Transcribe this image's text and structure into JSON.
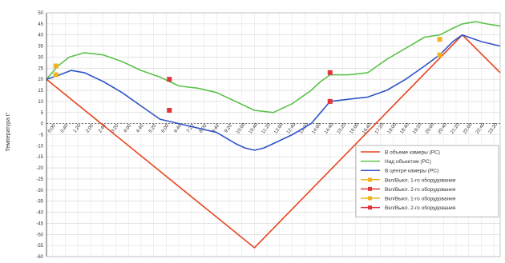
{
  "chart_data": {
    "type": "line",
    "title": "",
    "xlabel": "",
    "ylabel": "Температура t°",
    "ylim": [
      -60,
      50
    ],
    "yticks": [
      50,
      45,
      40,
      35,
      30,
      25,
      20,
      15,
      10,
      5,
      0,
      -5,
      -10,
      -15,
      -20,
      -25,
      -30,
      -35,
      -40,
      -45,
      -50,
      -55,
      -60
    ],
    "xlim": [
      0,
      24
    ],
    "x_tick_labels": [
      "0:00",
      "0:40",
      "1:20",
      "2:00",
      "2:40",
      "3:20",
      "4:00",
      "4:40",
      "5:20",
      "6:00",
      "6:40",
      "7:20",
      "8:00",
      "8:40",
      "9:20",
      "10:00",
      "10:40",
      "11:20",
      "12:00",
      "12:40",
      "13:20",
      "14:00",
      "14:40",
      "15:20",
      "16:00",
      "16:40",
      "17:20",
      "18:00",
      "18:40",
      "19:20",
      "20:00",
      "20:40",
      "21:20",
      "22:00",
      "22:40",
      "23:20"
    ],
    "grid": true,
    "legend_position": "bottom-right",
    "series": [
      {
        "name": "В объеме камеры (PC)",
        "color": "#e8431e",
        "x": [
          0,
          11,
          22,
          24
        ],
        "y": [
          20,
          -56,
          40,
          23
        ]
      },
      {
        "name": "Над объектом (PC)",
        "color": "#5cc24a",
        "x": [
          0,
          0.6,
          1.2,
          2,
          3,
          4,
          5,
          6,
          7,
          8,
          9,
          10,
          11,
          12,
          13,
          14,
          14.5,
          15,
          16,
          17,
          18,
          19,
          20,
          20.8,
          21.5,
          22,
          22.7,
          23.3,
          24
        ],
        "y": [
          20,
          26,
          30,
          32,
          31,
          28,
          24,
          21,
          17,
          16,
          14,
          10,
          6,
          5,
          9,
          15,
          19,
          22,
          22,
          23,
          29,
          34,
          39,
          40,
          43,
          45,
          46,
          45,
          44
        ]
      },
      {
        "name": "В центре камеры (PC)",
        "color": "#2f55c8",
        "x": [
          0,
          0.7,
          1.3,
          2,
          3,
          4,
          5,
          6,
          7,
          8,
          9,
          10,
          10.5,
          11,
          11.5,
          12,
          13,
          14,
          14.5,
          15,
          16,
          17,
          18,
          19,
          20,
          20.8,
          21.5,
          22,
          23,
          24
        ],
        "y": [
          20,
          22,
          24,
          23,
          19,
          14,
          8,
          2,
          0,
          -2,
          -4,
          -9,
          -11,
          -12,
          -11,
          -9,
          -5,
          0,
          5,
          10,
          11,
          12,
          15,
          20,
          26,
          31,
          37,
          40,
          37,
          35
        ]
      }
    ],
    "markers": [
      {
        "name": "Вкл/Выкл. 1-го оборудования",
        "color": "#f2b21f",
        "x": [
          0.5,
          20.8
        ],
        "y": [
          26,
          38
        ]
      },
      {
        "name": "Вкл/Выкл. 2-го оборудования",
        "color": "#e3343a",
        "x": [
          6.5,
          15
        ],
        "y": [
          20,
          23
        ]
      },
      {
        "name": "Вкл/Выкл. 1-го оборудования",
        "color": "#f2b21f",
        "x": [
          0.5,
          20.8
        ],
        "y": [
          22,
          31
        ]
      },
      {
        "name": "Вкл/Выкл. 2-го оборудования",
        "color": "#e3343a",
        "x": [
          6.5,
          15
        ],
        "y": [
          6,
          10
        ]
      }
    ]
  }
}
